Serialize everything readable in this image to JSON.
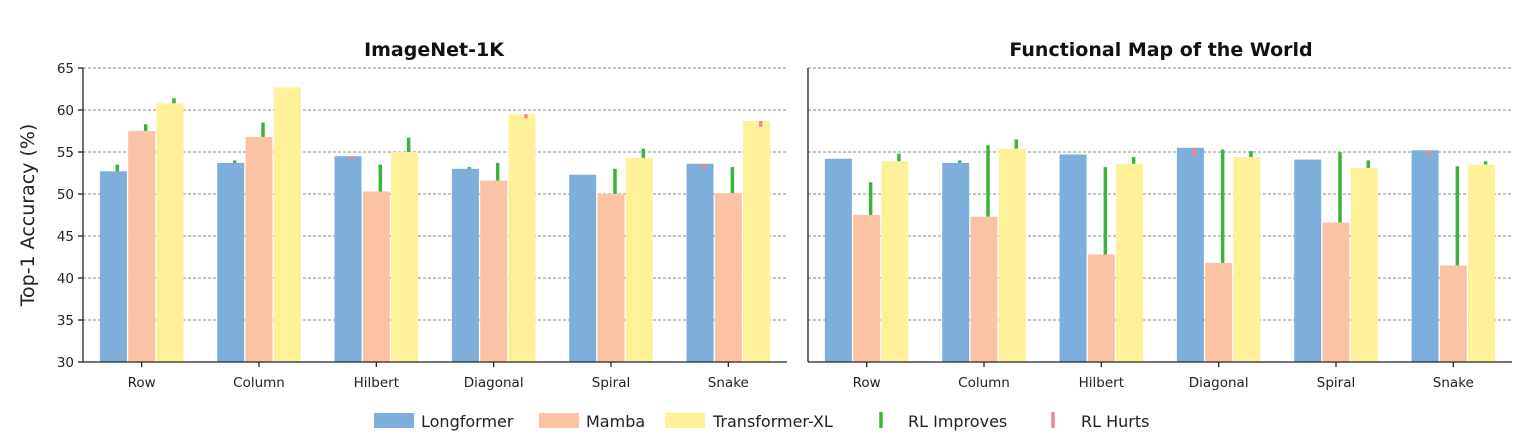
{
  "colors": {
    "Longformer": "#7eaedb",
    "Mamba": "#fbc3a3",
    "Transformer-XL": "#fff09a",
    "RL Improves": "#3cb33c",
    "RL Hurts": "#ec8b8b"
  },
  "y_axis": {
    "label": "Top-1 Accuracy (%)",
    "ylim": [
      30,
      65
    ],
    "ticks": [
      "30",
      "35",
      "40",
      "45",
      "50",
      "55",
      "60",
      "65"
    ]
  },
  "legend": [
    {
      "name": "Longformer",
      "kind": "bar"
    },
    {
      "name": "Mamba",
      "kind": "bar"
    },
    {
      "name": "Transformer-XL",
      "kind": "bar"
    },
    {
      "name": "RL Improves",
      "kind": "line"
    },
    {
      "name": "RL Hurts",
      "kind": "line"
    }
  ],
  "chart_data": [
    {
      "type": "bar",
      "title": "ImageNet-1K",
      "categories": [
        "Row",
        "Column",
        "Hilbert",
        "Diagonal",
        "Spiral",
        "Snake"
      ],
      "ylim": [
        30,
        65
      ],
      "ylabel": "Top-1 Accuracy (%)",
      "grid": true,
      "series": [
        {
          "name": "Longformer",
          "values": [
            52.7,
            53.7,
            54.5,
            53.0,
            52.3,
            53.6
          ],
          "rl": [
            53.5,
            54.0,
            54.0,
            53.2,
            52.3,
            53.0
          ]
        },
        {
          "name": "Mamba",
          "values": [
            57.5,
            56.8,
            50.3,
            51.6,
            50.0,
            50.1
          ],
          "rl": [
            58.3,
            58.5,
            53.5,
            53.7,
            53.0,
            53.2
          ]
        },
        {
          "name": "Transformer-XL",
          "values": [
            60.8,
            62.7,
            55.0,
            59.5,
            54.3,
            58.7
          ],
          "rl": [
            61.4,
            62.7,
            56.7,
            59.0,
            55.4,
            58.0
          ]
        }
      ]
    },
    {
      "type": "bar",
      "title": "Functional Map of the World",
      "categories": [
        "Row",
        "Column",
        "Hilbert",
        "Diagonal",
        "Spiral",
        "Snake"
      ],
      "ylim": [
        30,
        65
      ],
      "grid": true,
      "series": [
        {
          "name": "Longformer",
          "values": [
            54.2,
            53.7,
            54.7,
            55.5,
            54.1,
            55.2
          ],
          "rl": [
            54.2,
            54.0,
            54.7,
            54.4,
            54.1,
            54.5
          ]
        },
        {
          "name": "Mamba",
          "values": [
            47.5,
            47.3,
            42.8,
            41.8,
            46.6,
            41.5
          ],
          "rl": [
            51.4,
            55.8,
            53.2,
            55.3,
            55.0,
            53.3
          ]
        },
        {
          "name": "Transformer-XL",
          "values": [
            53.9,
            55.4,
            53.6,
            54.4,
            53.1,
            53.5
          ],
          "rl": [
            54.8,
            56.5,
            54.4,
            55.1,
            54.0,
            53.9
          ]
        }
      ]
    }
  ]
}
